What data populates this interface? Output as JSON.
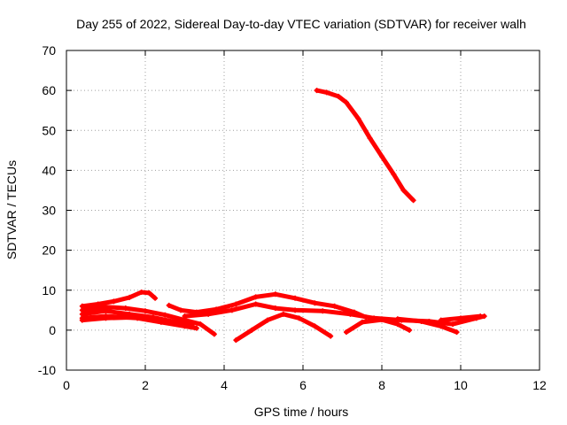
{
  "chart_data": {
    "type": "scatter",
    "title": "Day 255 of 2022, Sidereal Day-to-day VTEC variation (SDTVAR) for receiver walh",
    "xlabel": "GPS time / hours",
    "ylabel": "SDTVAR / TECUs",
    "xlim": [
      0,
      12
    ],
    "ylim": [
      -10,
      70
    ],
    "xticks": [
      0,
      2,
      4,
      6,
      8,
      10,
      12
    ],
    "yticks": [
      -10,
      0,
      10,
      20,
      30,
      40,
      50,
      60,
      70
    ],
    "xtick_labels": [
      "0",
      "2",
      "4",
      "6",
      "8",
      "10",
      "12"
    ],
    "ytick_labels": [
      "-10",
      "0",
      "10",
      "20",
      "30",
      "40",
      "50",
      "60",
      "70"
    ],
    "grid": true,
    "marker_color": "#ff0000",
    "series": [
      {
        "name": "track-1",
        "points": [
          [
            0.4,
            6
          ],
          [
            0.8,
            6.5
          ],
          [
            1.2,
            7.2
          ],
          [
            1.6,
            8.2
          ],
          [
            1.9,
            9.5
          ],
          [
            2.1,
            9.3
          ],
          [
            2.25,
            8
          ]
        ]
      },
      {
        "name": "track-2",
        "points": [
          [
            0.4,
            5
          ],
          [
            1,
            5.8
          ],
          [
            1.5,
            5.5
          ],
          [
            2,
            4.8
          ],
          [
            2.5,
            3.8
          ],
          [
            3,
            2.5
          ],
          [
            3.4,
            1.5
          ],
          [
            3.75,
            -1
          ]
        ]
      },
      {
        "name": "track-3",
        "points": [
          [
            0.4,
            4
          ],
          [
            1,
            4.8
          ],
          [
            1.6,
            4
          ],
          [
            2.2,
            3.2
          ],
          [
            2.8,
            2
          ],
          [
            3.2,
            1
          ]
        ]
      },
      {
        "name": "track-4",
        "points": [
          [
            0.4,
            3
          ],
          [
            1,
            3.5
          ],
          [
            1.8,
            3
          ],
          [
            2.4,
            2
          ],
          [
            3,
            1
          ],
          [
            3.3,
            0.5
          ]
        ]
      },
      {
        "name": "track-5",
        "points": [
          [
            0.4,
            2.5
          ],
          [
            1,
            3
          ],
          [
            1.7,
            3.2
          ],
          [
            2.3,
            2.5
          ]
        ]
      },
      {
        "name": "track-6",
        "points": [
          [
            2.6,
            6.2
          ],
          [
            2.9,
            5
          ],
          [
            3.3,
            4.5
          ],
          [
            3.8,
            5.2
          ],
          [
            4.3,
            6.5
          ],
          [
            4.8,
            8.3
          ],
          [
            5.3,
            9
          ],
          [
            5.8,
            8
          ],
          [
            6.3,
            6.8
          ],
          [
            6.8,
            6
          ],
          [
            7.3,
            4.5
          ],
          [
            7.6,
            3.2
          ]
        ]
      },
      {
        "name": "track-7",
        "points": [
          [
            3,
            3.5
          ],
          [
            3.6,
            4
          ],
          [
            4.2,
            5
          ],
          [
            4.8,
            6.5
          ],
          [
            5.3,
            5.5
          ],
          [
            5.8,
            5
          ],
          [
            6.5,
            4.8
          ],
          [
            7.2,
            4
          ],
          [
            7.8,
            3
          ],
          [
            8.5,
            2.5
          ],
          [
            9.2,
            2.2
          ],
          [
            9.8,
            1.5
          ],
          [
            10.4,
            3
          ],
          [
            10.6,
            3.5
          ]
        ]
      },
      {
        "name": "track-8",
        "points": [
          [
            4.3,
            -2.5
          ],
          [
            4.7,
            0
          ],
          [
            5.1,
            2.5
          ],
          [
            5.5,
            4
          ],
          [
            5.9,
            3
          ],
          [
            6.3,
            1
          ],
          [
            6.7,
            -1.5
          ]
        ]
      },
      {
        "name": "track-9",
        "points": [
          [
            7.1,
            -0.5
          ],
          [
            7.5,
            2
          ],
          [
            8,
            2.6
          ],
          [
            8.4,
            1.5
          ],
          [
            8.7,
            0
          ]
        ]
      },
      {
        "name": "track-10",
        "points": [
          [
            8.4,
            2.8
          ],
          [
            9,
            2.2
          ],
          [
            9.5,
            1
          ],
          [
            9.9,
            -0.5
          ]
        ]
      },
      {
        "name": "track-11",
        "points": [
          [
            9.5,
            2.5
          ],
          [
            10,
            3
          ],
          [
            10.5,
            3.5
          ]
        ]
      },
      {
        "name": "track-12",
        "points": [
          [
            6.35,
            60
          ],
          [
            6.6,
            59.5
          ],
          [
            6.9,
            58.5
          ],
          [
            7.1,
            57
          ],
          [
            7.4,
            53
          ],
          [
            7.7,
            48
          ],
          [
            8,
            43.5
          ],
          [
            8.3,
            39
          ],
          [
            8.55,
            35
          ],
          [
            8.8,
            32.5
          ]
        ]
      }
    ]
  }
}
